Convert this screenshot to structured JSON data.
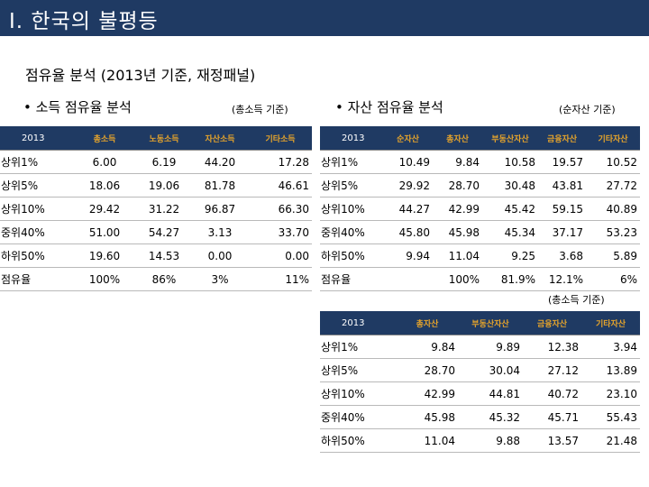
{
  "header": {
    "title": "Ⅰ. 한국의 불평등"
  },
  "subtitle": "점유율 분석 (2013년 기준, 재정패널)",
  "income": {
    "heading": "• 소득 점유율 분석",
    "basis": "(총소득 기준)",
    "year": "2013",
    "columns": [
      "총소득",
      "노동소득",
      "자산소득",
      "기타소득"
    ],
    "rows": [
      {
        "label": "상위1%",
        "values": [
          "6.00",
          "6.19",
          "44.20",
          "17.28"
        ]
      },
      {
        "label": "상위5%",
        "values": [
          "18.06",
          "19.06",
          "81.78",
          "46.61"
        ]
      },
      {
        "label": "상위10%",
        "values": [
          "29.42",
          "31.22",
          "96.87",
          "66.30"
        ]
      },
      {
        "label": "중위40%",
        "values": [
          "51.00",
          "54.27",
          "3.13",
          "33.70"
        ]
      },
      {
        "label": "하위50%",
        "values": [
          "19.60",
          "14.53",
          "0.00",
          "0.00"
        ]
      },
      {
        "label": "점유율",
        "values": [
          "100%",
          "86%",
          "3%",
          "11%"
        ]
      }
    ]
  },
  "assets": {
    "heading": "• 자산 점유율 분석",
    "basis": "(순자산 기준)",
    "year": "2013",
    "columns": [
      "순자산",
      "총자산",
      "부동산자산",
      "금융자산",
      "기타자산"
    ],
    "rows": [
      {
        "label": "상위1%",
        "values": [
          "10.49",
          "9.84",
          "10.58",
          "19.57",
          "10.52"
        ]
      },
      {
        "label": "상위5%",
        "values": [
          "29.92",
          "28.70",
          "30.48",
          "43.81",
          "27.72"
        ]
      },
      {
        "label": "상위10%",
        "values": [
          "44.27",
          "42.99",
          "45.42",
          "59.15",
          "40.89"
        ]
      },
      {
        "label": "중위40%",
        "values": [
          "45.80",
          "45.98",
          "45.34",
          "37.17",
          "53.23"
        ]
      },
      {
        "label": "하위50%",
        "values": [
          "9.94",
          "11.04",
          "9.25",
          "3.68",
          "5.89"
        ]
      },
      {
        "label": "점유율",
        "values": [
          "",
          "100%",
          "81.9%",
          "12.1%",
          "6%"
        ]
      }
    ]
  },
  "assets_income": {
    "basis": "(총소득 기준)",
    "year": "2013",
    "columns": [
      "총자산",
      "부동산자산",
      "금융자산",
      "기타자산"
    ],
    "rows": [
      {
        "label": "상위1%",
        "values": [
          "9.84",
          "9.89",
          "12.38",
          "3.94"
        ]
      },
      {
        "label": "상위5%",
        "values": [
          "28.70",
          "30.04",
          "27.12",
          "13.89"
        ]
      },
      {
        "label": "상위10%",
        "values": [
          "42.99",
          "44.81",
          "40.72",
          "23.10"
        ]
      },
      {
        "label": "중위40%",
        "values": [
          "45.98",
          "45.32",
          "45.71",
          "55.43"
        ]
      },
      {
        "label": "하위50%",
        "values": [
          "11.04",
          "9.88",
          "13.57",
          "21.48"
        ]
      }
    ]
  },
  "colors": {
    "header_bg": "#1f3a63",
    "header_text": "#e6a42b"
  }
}
